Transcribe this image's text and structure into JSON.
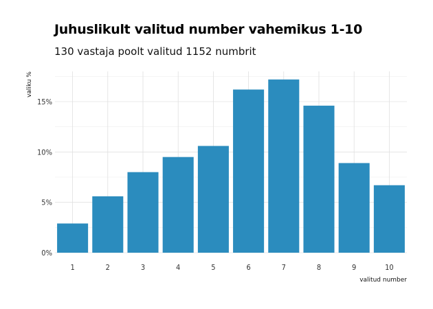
{
  "chart_data": {
    "type": "bar",
    "title": "Juhuslikult valitud number vahemikus 1-10",
    "subtitle": "130 vastaja poolt valitud 1152 numbrit",
    "xlabel": "valitud number",
    "ylabel": "valiku %",
    "categories": [
      "1",
      "2",
      "3",
      "4",
      "5",
      "6",
      "7",
      "8",
      "9",
      "10"
    ],
    "values": [
      2.9,
      5.6,
      8.0,
      9.5,
      10.6,
      16.2,
      17.2,
      14.6,
      8.9,
      6.7
    ],
    "ylim": [
      0,
      18
    ],
    "yticks": [
      0,
      5,
      10,
      15
    ],
    "ytick_labels": [
      "0%",
      "5%",
      "10%",
      "15%"
    ],
    "bar_color": "#2b8cbe",
    "grid": true
  }
}
